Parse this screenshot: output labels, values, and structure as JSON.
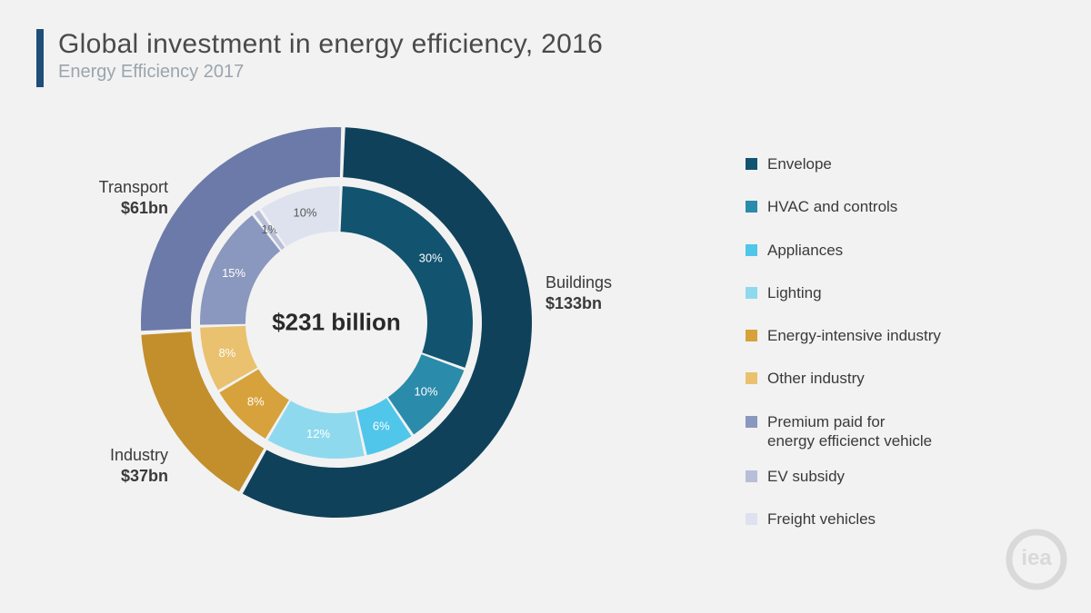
{
  "header": {
    "title": "Global investment in energy efficiency, 2016",
    "subtitle": "Energy Efficiency 2017",
    "accent_color": "#1f4e79",
    "title_color": "#4a4a4a",
    "subtitle_color": "#9aa5ae",
    "title_fontsize": 30,
    "subtitle_fontsize": 20
  },
  "background_color": "#f2f2f2",
  "chart": {
    "type": "nested-donut",
    "center_label": "$231 billion",
    "center_fontsize": 26,
    "outer_radius": 215,
    "outer_inner_radius": 160,
    "inner_radius": 150,
    "inner_inner_radius": 100,
    "ring_gap": 10,
    "slice_gap_color": "#f2f2f2",
    "outer_ring": [
      {
        "key": "buildings",
        "label": "Buildings",
        "value_label": "$133bn",
        "value": 133,
        "color": "#0f415a",
        "label_pos": "right"
      },
      {
        "key": "industry",
        "label": "Industry",
        "value_label": "$37bn",
        "value": 37,
        "color": "#c28f2c",
        "label_pos": "bottom-left"
      },
      {
        "key": "transport",
        "label": "Transport",
        "value_label": "$61bn",
        "value": 61,
        "color": "#6b7aa8",
        "label_pos": "top-left"
      }
    ],
    "inner_ring": [
      {
        "key": "envelope",
        "label": "30%",
        "percent": 30,
        "color": "#12536f",
        "text_color": "light"
      },
      {
        "key": "hvac",
        "label": "10%",
        "percent": 10,
        "color": "#2a8bab",
        "text_color": "light"
      },
      {
        "key": "appliances",
        "label": "6%",
        "percent": 6,
        "color": "#4fc6ea",
        "text_color": "light"
      },
      {
        "key": "lighting",
        "label": "12%",
        "percent": 12,
        "color": "#8fd9ef",
        "text_color": "light"
      },
      {
        "key": "ei-industry",
        "label": "8%",
        "percent": 8,
        "color": "#d7a23b",
        "text_color": "light"
      },
      {
        "key": "other-ind",
        "label": "8%",
        "percent": 8,
        "color": "#e9c16f",
        "text_color": "light"
      },
      {
        "key": "premium-ev",
        "label": "15%",
        "percent": 15,
        "color": "#8a97be",
        "text_color": "light"
      },
      {
        "key": "ev-subsidy",
        "label": "1%",
        "percent": 1,
        "color": "#b7bfd8",
        "text_color": "dark"
      },
      {
        "key": "freight",
        "label": "10%",
        "percent": 10,
        "color": "#dde2ee",
        "text_color": "dark"
      }
    ],
    "slice_label_fontsize": 13,
    "start_angle_deg": 2
  },
  "legend": {
    "fontsize": 17,
    "items": [
      {
        "label": "Envelope",
        "color": "#12536f"
      },
      {
        "label": "HVAC and controls",
        "color": "#2a8bab"
      },
      {
        "label": "Appliances",
        "color": "#4fc6ea"
      },
      {
        "label": "Lighting",
        "color": "#8fd9ef"
      },
      {
        "label": "Energy-intensive industry",
        "color": "#d7a23b"
      },
      {
        "label": "Other industry",
        "color": "#e9c16f"
      },
      {
        "label": "Premium paid for\nenergy efficienct vehicle",
        "color": "#8a97be"
      },
      {
        "label": "EV subsidy",
        "color": "#b7bfd8"
      },
      {
        "label": "Freight vehicles",
        "color": "#dde2ee"
      }
    ]
  },
  "logo": {
    "text": "iea",
    "color": "#9a9a9a"
  }
}
